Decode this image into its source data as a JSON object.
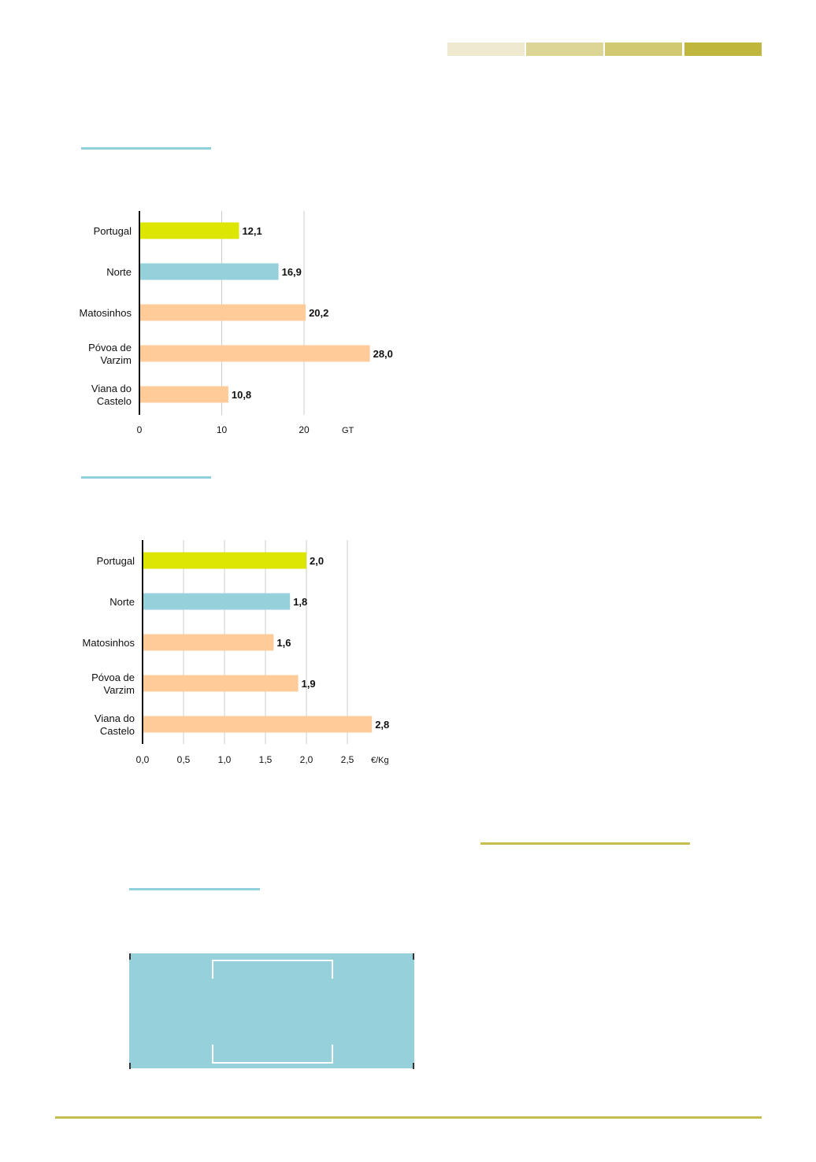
{
  "colors": {
    "portugal": "#dde600",
    "norte": "#96d0da",
    "municipality": "#ffcc99",
    "rule_cyan": "#8fd0dc",
    "rule_olive": "#c6bd4f",
    "header_strip": [
      "#efe9cf",
      "#ddd596",
      "#d1c872",
      "#bfb63d"
    ]
  },
  "chart_data": [
    {
      "type": "bar",
      "orientation": "horizontal",
      "categories": [
        [
          "Portugal"
        ],
        [
          "Norte"
        ],
        [
          "Matosinhos"
        ],
        [
          "Póvoa de",
          "Varzim"
        ],
        [
          "Viana do",
          "Castelo"
        ]
      ],
      "values": [
        12.1,
        16.9,
        20.2,
        28.0,
        10.8
      ],
      "value_labels": [
        "12,1",
        "16,9",
        "20,2",
        "28,0",
        "10,8"
      ],
      "xticks": [
        0,
        10,
        20
      ],
      "xtick_labels": [
        "0",
        "10",
        "20"
      ],
      "unit": "GT",
      "xlim": [
        0,
        30
      ],
      "grid": true,
      "title": "",
      "xlabel": "",
      "ylabel": ""
    },
    {
      "type": "bar",
      "orientation": "horizontal",
      "categories": [
        [
          "Portugal"
        ],
        [
          "Norte"
        ],
        [
          "Matosinhos"
        ],
        [
          "Póvoa de",
          "Varzim"
        ],
        [
          "Viana do",
          "Castelo"
        ]
      ],
      "values": [
        2.0,
        1.8,
        1.6,
        1.9,
        2.8
      ],
      "value_labels": [
        "2,0",
        "1,8",
        "1,6",
        "1,9",
        "2,8"
      ],
      "xticks": [
        0.0,
        0.5,
        1.0,
        1.5,
        2.0,
        2.5
      ],
      "xtick_labels": [
        "0,0",
        "0,5",
        "1,0",
        "1,5",
        "2,0",
        "2,5"
      ],
      "unit": "€/Kg",
      "xlim": [
        0,
        3.0
      ],
      "grid": true,
      "title": "",
      "xlabel": "",
      "ylabel": ""
    }
  ]
}
